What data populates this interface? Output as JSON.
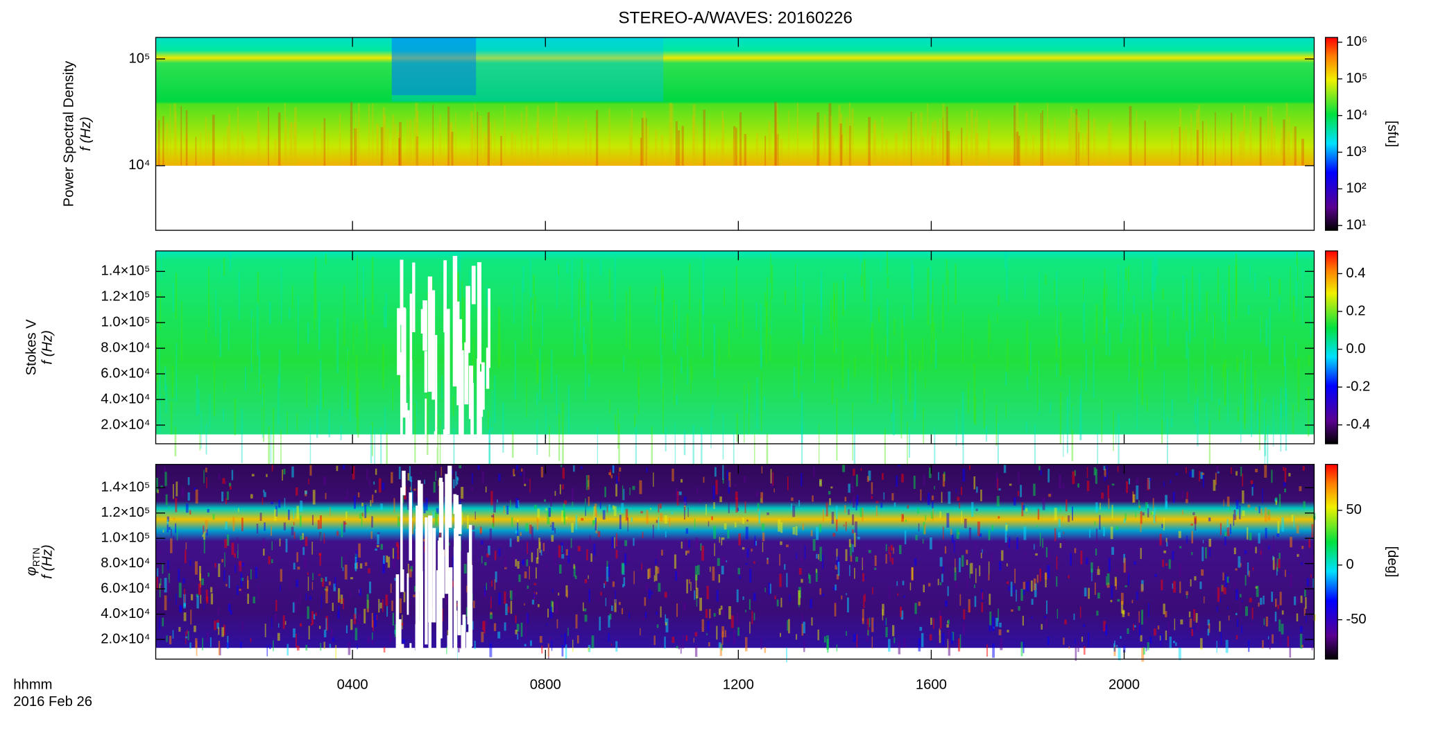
{
  "title": "STEREO-A/WAVES: 20160226",
  "xlabel": "hhmm",
  "date": "2016 Feb 26",
  "xaxis": {
    "xlim": [
      -0.08,
      23.94
    ],
    "xticks": [
      {
        "value": 4,
        "label": "0400"
      },
      {
        "value": 8,
        "label": "0800"
      },
      {
        "value": 12,
        "label": "1200"
      },
      {
        "value": 16,
        "label": "1600"
      },
      {
        "value": 20,
        "label": "2000"
      }
    ]
  },
  "chart_data": [
    {
      "type": "spectrogram",
      "ylabel": [
        "Power Spectral Density",
        "f (Hz)"
      ],
      "ylog": true,
      "ylim": [
        2480,
        159000
      ],
      "yticks": [
        {
          "value": 10000,
          "label": "10⁴"
        },
        {
          "value": 100000,
          "label": "10⁵"
        }
      ],
      "clog": true,
      "clim": [
        7.4,
        1350000
      ],
      "cticks": [
        {
          "value": 10,
          "label": "10¹"
        },
        {
          "value": 100,
          "label": "10²"
        },
        {
          "value": 1000,
          "label": "10³"
        },
        {
          "value": 10000,
          "label": "10⁴"
        },
        {
          "value": 100000,
          "label": "10⁵"
        },
        {
          "value": 1000000,
          "label": "10⁶"
        }
      ],
      "clabel": "[sfu]"
    },
    {
      "type": "spectrogram",
      "ylabel": [
        "Stokes V",
        "f (Hz)"
      ],
      "ylog": false,
      "ylim": [
        5400,
        156000
      ],
      "yticks": [
        {
          "value": 20000,
          "label": "2.0×10⁴"
        },
        {
          "value": 40000,
          "label": "4.0×10⁴"
        },
        {
          "value": 60000,
          "label": "6.0×10⁴"
        },
        {
          "value": 80000,
          "label": "8.0×10⁴"
        },
        {
          "value": 100000,
          "label": "1.0×10⁵"
        },
        {
          "value": 120000,
          "label": "1.2×10⁵"
        },
        {
          "value": 140000,
          "label": "1.4×10⁵"
        }
      ],
      "clog": false,
      "clim": [
        -0.5,
        0.52
      ],
      "cticks": [
        -0.4,
        -0.2,
        {
          "value": 0,
          "label": "0.0"
        },
        0.2,
        0.4
      ]
    },
    {
      "type": "spectrogram",
      "ylabel": [
        "φ",
        "RTN",
        "f (Hz)"
      ],
      "ylog": false,
      "ylim": [
        4400,
        158500
      ],
      "yticks": [
        {
          "value": 20000,
          "label": "2.0×10⁴"
        },
        {
          "value": 40000,
          "label": "4.0×10⁴"
        },
        {
          "value": 60000,
          "label": "6.0×10⁴"
        },
        {
          "value": 80000,
          "label": "8.0×10⁴"
        },
        {
          "value": 100000,
          "label": "1.0×10⁵"
        },
        {
          "value": 120000,
          "label": "1.2×10⁵"
        },
        {
          "value": 140000,
          "label": "1.4×10⁵"
        }
      ],
      "clog": false,
      "clim": [
        -86,
        92
      ],
      "cticks": [
        -50,
        0,
        50
      ],
      "clabel": "[deg]"
    }
  ]
}
